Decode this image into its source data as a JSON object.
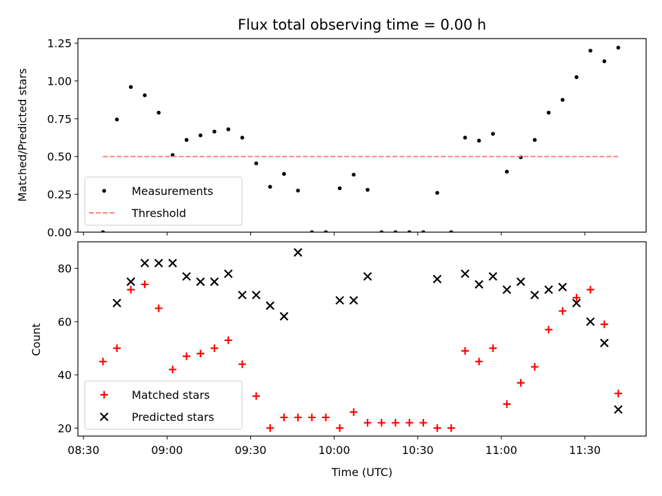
{
  "chart_data": [
    {
      "type": "scatter",
      "title": "Flux total observing time = 0.00 h",
      "xlabel": "",
      "ylabel": "Matched/Predicted stars",
      "ylim": [
        0,
        1.28
      ],
      "xlim": [
        "08:28",
        "11:52"
      ],
      "yticks": [
        "0.00",
        "0.25",
        "0.50",
        "0.75",
        "1.00",
        "1.25"
      ],
      "grid": false,
      "legend_position": "lower-left",
      "series": [
        {
          "name": "Measurements",
          "marker": "dot",
          "color": "#000000",
          "points": [
            [
              "08:37",
              0.0
            ],
            [
              "08:42",
              0.745
            ],
            [
              "08:47",
              0.96
            ],
            [
              "08:52",
              0.905
            ],
            [
              "08:57",
              0.79
            ],
            [
              "09:02",
              0.51
            ],
            [
              "09:07",
              0.61
            ],
            [
              "09:12",
              0.64
            ],
            [
              "09:17",
              0.665
            ],
            [
              "09:22",
              0.68
            ],
            [
              "09:27",
              0.625
            ],
            [
              "09:32",
              0.455
            ],
            [
              "09:37",
              0.3
            ],
            [
              "09:42",
              0.385
            ],
            [
              "09:47",
              0.275
            ],
            [
              "09:52",
              0.0
            ],
            [
              "09:57",
              0.0
            ],
            [
              "10:02",
              0.29
            ],
            [
              "10:07",
              0.38
            ],
            [
              "10:12",
              0.28
            ],
            [
              "10:17",
              0.0
            ],
            [
              "10:22",
              0.0
            ],
            [
              "10:27",
              0.0
            ],
            [
              "10:32",
              0.0
            ],
            [
              "10:37",
              0.26
            ],
            [
              "10:42",
              0.0
            ],
            [
              "10:47",
              0.625
            ],
            [
              "10:52",
              0.605
            ],
            [
              "10:57",
              0.65
            ],
            [
              "11:02",
              0.4
            ],
            [
              "11:07",
              0.495
            ],
            [
              "11:12",
              0.61
            ],
            [
              "11:17",
              0.79
            ],
            [
              "11:22",
              0.875
            ],
            [
              "11:27",
              1.025
            ],
            [
              "11:32",
              1.2
            ],
            [
              "11:37",
              1.13
            ],
            [
              "11:42",
              1.22
            ]
          ]
        },
        {
          "name": "Threshold",
          "marker": "dashed-line",
          "color": "#ff7f7f",
          "points": [
            [
              "08:37",
              0.5
            ],
            [
              "11:42",
              0.5
            ]
          ]
        }
      ]
    },
    {
      "type": "scatter",
      "title": "",
      "xlabel": "Time (UTC)",
      "ylabel": "Count",
      "ylim": [
        17,
        90
      ],
      "xlim": [
        "08:28",
        "11:52"
      ],
      "yticks": [
        "20",
        "40",
        "60",
        "80"
      ],
      "xticks": [
        "08:30",
        "09:00",
        "09:30",
        "10:00",
        "10:30",
        "11:00",
        "11:30"
      ],
      "grid": false,
      "legend_position": "lower-left",
      "series": [
        {
          "name": "Matched stars",
          "marker": "plus",
          "color": "#ff0000",
          "points": [
            [
              "08:37",
              45
            ],
            [
              "08:42",
              50
            ],
            [
              "08:47",
              72
            ],
            [
              "08:52",
              74
            ],
            [
              "08:57",
              65
            ],
            [
              "09:02",
              42
            ],
            [
              "09:07",
              47
            ],
            [
              "09:12",
              48
            ],
            [
              "09:17",
              50
            ],
            [
              "09:22",
              53
            ],
            [
              "09:27",
              44
            ],
            [
              "09:32",
              32
            ],
            [
              "09:37",
              20
            ],
            [
              "09:42",
              24
            ],
            [
              "09:47",
              24
            ],
            [
              "09:52",
              24
            ],
            [
              "09:57",
              24
            ],
            [
              "10:02",
              20
            ],
            [
              "10:07",
              26
            ],
            [
              "10:12",
              22
            ],
            [
              "10:17",
              22
            ],
            [
              "10:22",
              22
            ],
            [
              "10:27",
              22
            ],
            [
              "10:32",
              22
            ],
            [
              "10:37",
              20
            ],
            [
              "10:42",
              20
            ],
            [
              "10:47",
              49
            ],
            [
              "10:52",
              45
            ],
            [
              "10:57",
              50
            ],
            [
              "11:02",
              29
            ],
            [
              "11:07",
              37
            ],
            [
              "11:12",
              43
            ],
            [
              "11:17",
              57
            ],
            [
              "11:22",
              64
            ],
            [
              "11:27",
              69
            ],
            [
              "11:32",
              72
            ],
            [
              "11:37",
              59
            ],
            [
              "11:42",
              33
            ]
          ]
        },
        {
          "name": "Predicted stars",
          "marker": "x",
          "color": "#000000",
          "points": [
            [
              "08:42",
              67
            ],
            [
              "08:47",
              75
            ],
            [
              "08:52",
              82
            ],
            [
              "08:57",
              82
            ],
            [
              "09:02",
              82
            ],
            [
              "09:07",
              77
            ],
            [
              "09:12",
              75
            ],
            [
              "09:17",
              75
            ],
            [
              "09:22",
              78
            ],
            [
              "09:27",
              70
            ],
            [
              "09:32",
              70
            ],
            [
              "09:37",
              66
            ],
            [
              "09:42",
              62
            ],
            [
              "09:47",
              86
            ],
            [
              "10:02",
              68
            ],
            [
              "10:07",
              68
            ],
            [
              "10:12",
              77
            ],
            [
              "10:37",
              76
            ],
            [
              "10:47",
              78
            ],
            [
              "10:52",
              74
            ],
            [
              "10:57",
              77
            ],
            [
              "11:02",
              72
            ],
            [
              "11:07",
              75
            ],
            [
              "11:12",
              70
            ],
            [
              "11:17",
              72
            ],
            [
              "11:22",
              73
            ],
            [
              "11:27",
              67
            ],
            [
              "11:32",
              60
            ],
            [
              "11:37",
              52
            ],
            [
              "11:42",
              27
            ]
          ]
        }
      ]
    }
  ]
}
